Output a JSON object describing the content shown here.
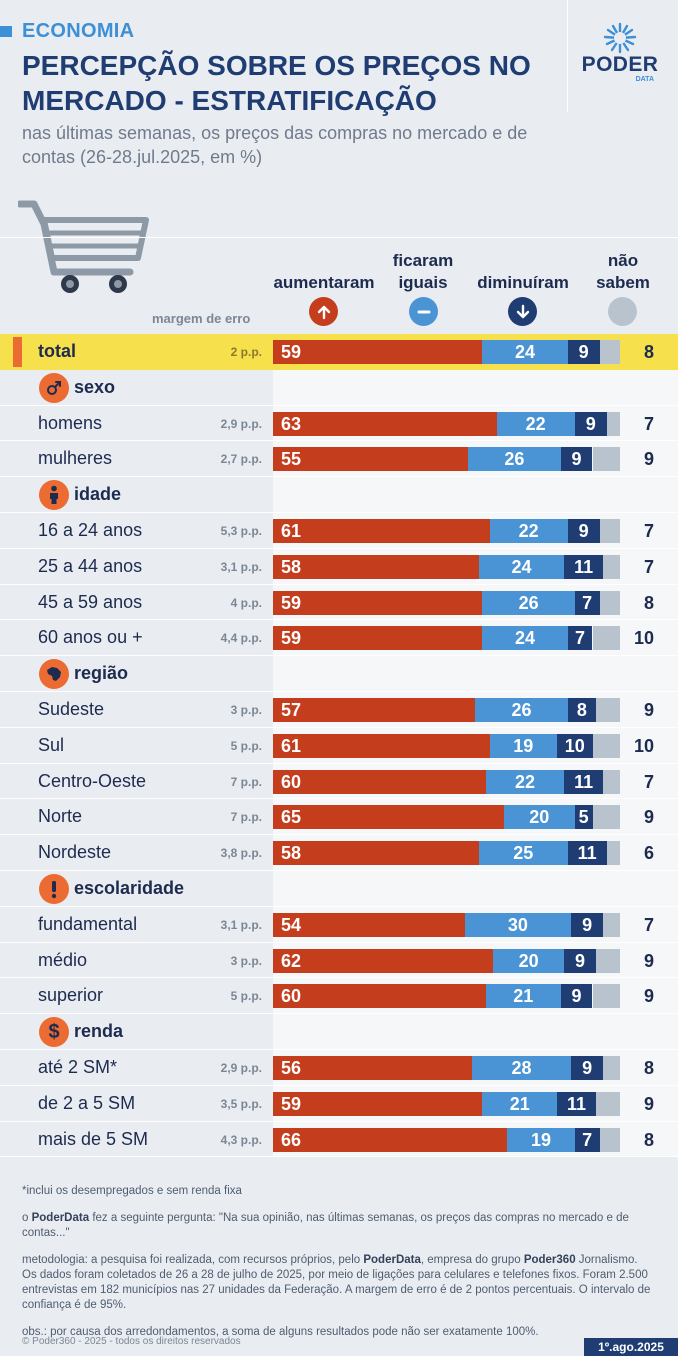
{
  "kicker": "ECONOMIA",
  "title": "PERCEPÇÃO SOBRE OS PREÇOS NO MERCADO - ESTRATIFICAÇÃO",
  "subtitle": "nas últimas semanas, os preços das compras no mercado e de contas (26-28.jul.2025, em %)",
  "brand": {
    "name": "PODER",
    "sub": "DATA"
  },
  "columns": {
    "up": "aumentaram",
    "equal_1": "ficaram",
    "equal_2": "iguais",
    "down": "diminuíram",
    "dk_1": "não",
    "dk_2": "sabem",
    "margin": "margem de erro"
  },
  "colors": {
    "up": "#c43d1c",
    "equal": "#4a93d4",
    "down": "#1f3d73",
    "dont_know": "#b9c3cd",
    "accent": "#ec6b32",
    "highlight": "#f6e04b"
  },
  "chart_data": {
    "type": "bar",
    "stacked": true,
    "orientation": "horizontal",
    "xlim": [
      0,
      100
    ],
    "series_names": [
      "aumentaram",
      "ficaram iguais",
      "diminuíram",
      "não sabem"
    ],
    "rows": [
      {
        "kind": "total",
        "label": "total",
        "err": "2 p.p.",
        "values": [
          59,
          24,
          9,
          8
        ]
      },
      {
        "kind": "section",
        "label": "sexo",
        "icon": "gender-icon"
      },
      {
        "kind": "data",
        "label": "homens",
        "err": "2,9 p.p.",
        "values": [
          63,
          22,
          9,
          7
        ]
      },
      {
        "kind": "data",
        "label": "mulheres",
        "err": "2,7 p.p.",
        "values": [
          55,
          26,
          9,
          9
        ]
      },
      {
        "kind": "section",
        "label": "idade",
        "icon": "person-icon"
      },
      {
        "kind": "data",
        "label": "16 a 24 anos",
        "err": "5,3 p.p.",
        "values": [
          61,
          22,
          9,
          7
        ]
      },
      {
        "kind": "data",
        "label": "25 a 44 anos",
        "err": "3,1 p.p.",
        "values": [
          58,
          24,
          11,
          7
        ]
      },
      {
        "kind": "data",
        "label": "45 a 59 anos",
        "err": "4 p.p.",
        "values": [
          59,
          26,
          7,
          8
        ]
      },
      {
        "kind": "data",
        "label": "60 anos ou +",
        "err": "4,4 p.p.",
        "values": [
          59,
          24,
          7,
          10
        ]
      },
      {
        "kind": "section",
        "label": "região",
        "icon": "brazil-map-icon"
      },
      {
        "kind": "data",
        "label": "Sudeste",
        "err": "3 p.p.",
        "values": [
          57,
          26,
          8,
          9
        ]
      },
      {
        "kind": "data",
        "label": "Sul",
        "err": "5 p.p.",
        "values": [
          61,
          19,
          10,
          10
        ]
      },
      {
        "kind": "data",
        "label": "Centro-Oeste",
        "err": "7 p.p.",
        "values": [
          60,
          22,
          11,
          7
        ]
      },
      {
        "kind": "data",
        "label": "Norte",
        "err": "7 p.p.",
        "values": [
          65,
          20,
          5,
          9
        ]
      },
      {
        "kind": "data",
        "label": "Nordeste",
        "err": "3,8 p.p.",
        "values": [
          58,
          25,
          11,
          6
        ]
      },
      {
        "kind": "section",
        "label": "escolaridade",
        "icon": "exclamation-icon"
      },
      {
        "kind": "data",
        "label": "fundamental",
        "err": "3,1 p.p.",
        "values": [
          54,
          30,
          9,
          7
        ]
      },
      {
        "kind": "data",
        "label": "médio",
        "err": "3 p.p.",
        "values": [
          62,
          20,
          9,
          9
        ]
      },
      {
        "kind": "data",
        "label": "superior",
        "err": "5 p.p.",
        "values": [
          60,
          21,
          9,
          9
        ]
      },
      {
        "kind": "section",
        "label": "renda",
        "icon": "dollar-icon"
      },
      {
        "kind": "data",
        "label": "até 2 SM*",
        "err": "2,9 p.p.",
        "values": [
          56,
          28,
          9,
          8
        ]
      },
      {
        "kind": "data",
        "label": "de 2 a 5 SM",
        "err": "3,5 p.p.",
        "values": [
          59,
          21,
          11,
          9
        ]
      },
      {
        "kind": "data",
        "label": "mais de 5 SM",
        "err": "4,3 p.p.",
        "values": [
          66,
          19,
          7,
          8
        ]
      }
    ]
  },
  "notes": {
    "footnote": "*inclui os desempregados e sem renda fixa",
    "question_brand": "PoderData",
    "question_text": " fez a seguinte pergunta: \"Na sua opinião, nas últimas semanas, os preços das compras no mercado e de contas...\"",
    "method_1": "metodologia: a pesquisa foi realizada, com recursos próprios, pelo ",
    "method_brand": "PoderData",
    "method_2": ", empresa do grupo ",
    "method_group": "Poder360",
    "method_3": " Jornalismo. Os dados foram coletados de 26 a 28 de julho de 2025, por meio de ligações para celulares e telefones fixos. Foram 2.500 entrevistas em 182 municípios nas 27 unidades da Federação. A margem de erro é de 2 pontos percentuais. O intervalo de confiança é de 95%.",
    "obs": "obs.: por causa dos arredondamentos, a soma de alguns resultados pode não ser exatamente 100%.",
    "question_prefix": "o "
  },
  "footer": {
    "copyright": "© Poder360 - 2025 - todos os direitos reservados",
    "date": "1º.ago.2025"
  }
}
